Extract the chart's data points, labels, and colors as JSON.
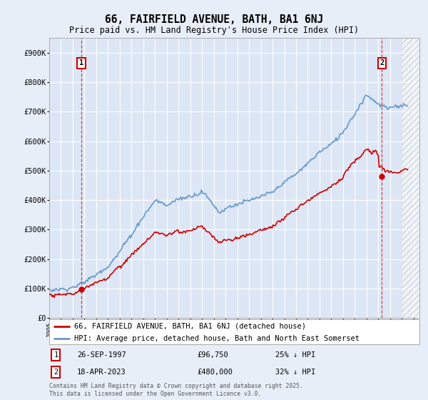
{
  "title": "66, FAIRFIELD AVENUE, BATH, BA1 6NJ",
  "subtitle": "Price paid vs. HM Land Registry's House Price Index (HPI)",
  "legend_line1": "66, FAIRFIELD AVENUE, BATH, BA1 6NJ (detached house)",
  "legend_line2": "HPI: Average price, detached house, Bath and North East Somerset",
  "annotation1": [
    "1",
    "26-SEP-1997",
    "£96,750",
    "25% ↓ HPI"
  ],
  "annotation2": [
    "2",
    "18-APR-2023",
    "£480,000",
    "32% ↓ HPI"
  ],
  "footer": "Contains HM Land Registry data © Crown copyright and database right 2025.\nThis data is licensed under the Open Government Licence v3.0.",
  "xmin": 1995.0,
  "xmax": 2026.5,
  "ymin": 0,
  "ymax": 950000,
  "marker1_x": 1997.74,
  "marker1_y": 96750,
  "marker2_x": 2023.3,
  "marker2_y": 480000,
  "bg_color": "#e8eef8",
  "plot_bg": "#dce6f5",
  "red_color": "#cc0000",
  "blue_color": "#6699cc",
  "hatch_start": 2025.0,
  "grid_color": "#ffffff",
  "yticks": [
    0,
    100000,
    200000,
    300000,
    400000,
    500000,
    600000,
    700000,
    800000,
    900000
  ],
  "ytick_labels": [
    "£0",
    "£100K",
    "£200K",
    "£300K",
    "£400K",
    "£500K",
    "£600K",
    "£700K",
    "£800K",
    "£900K"
  ]
}
